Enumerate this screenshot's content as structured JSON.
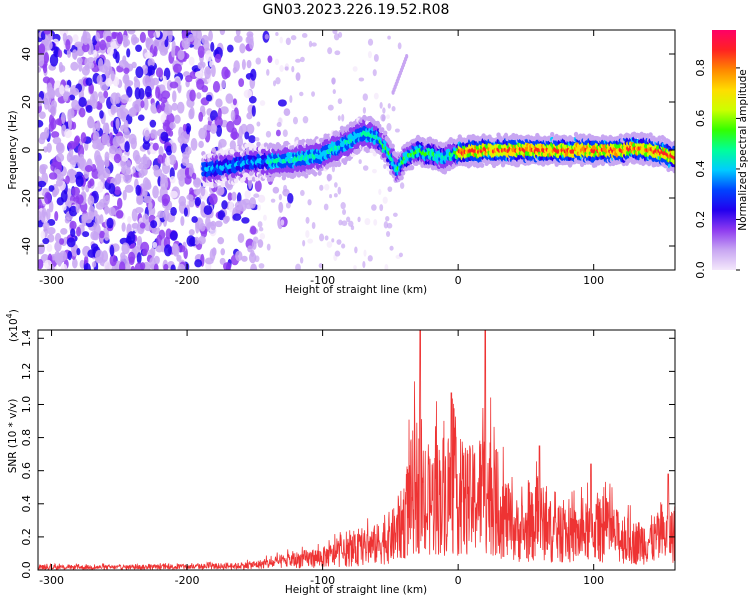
{
  "title": "GN03.2023.226.19.52.R08",
  "chart_data": [
    {
      "type": "heatmap",
      "xlabel": "Height of straight line (km)",
      "ylabel": "Frequency (Hz)",
      "xlim": [
        -310,
        160
      ],
      "ylim": [
        -50,
        50
      ],
      "xticks": [
        -300,
        -200,
        -100,
        0,
        100
      ],
      "yticks": [
        -40,
        -20,
        0,
        20,
        40
      ],
      "colorbar": {
        "label": "Normalized spectral amplitude",
        "range": [
          0.0,
          0.95
        ],
        "ticks": [
          "0.0",
          "0.2",
          "0.4",
          "0.6",
          "0.8"
        ],
        "tick_values": [
          0.0,
          0.2,
          0.4,
          0.6,
          0.8
        ],
        "colormap": [
          "#f4e8fb",
          "#c8a6f2",
          "#8e3bf0",
          "#2200ee",
          "#0044ff",
          "#00ccff",
          "#00ff99",
          "#33ff00",
          "#ccff00",
          "#ffdd00",
          "#ff8800",
          "#ff2222",
          "#ff0066"
        ]
      },
      "ridge": {
        "description_points_x": [
          -185,
          -150,
          -120,
          -100,
          -85,
          -70,
          -60,
          -52,
          -45,
          -40,
          -30,
          -20,
          -10,
          0,
          20,
          40,
          60,
          80,
          100,
          120,
          135,
          150,
          160
        ],
        "description_points_y": [
          -8,
          -5,
          -4,
          -2,
          2,
          7,
          6,
          0,
          -8,
          -4,
          0,
          -2,
          -3,
          -1,
          0,
          0,
          0,
          0,
          0,
          0,
          1,
          -1,
          -3
        ]
      },
      "grid": false
    },
    {
      "type": "line",
      "xlabel": "Height of straight line (km)",
      "ylabel": "SNR (10 * v/v)",
      "multiplier": "(x10",
      "multiplier_exp": "4",
      "multiplier_close": ")",
      "xlim": [
        -310,
        160
      ],
      "ylim": [
        0,
        1.45
      ],
      "xticks": [
        -300,
        -200,
        -100,
        0,
        100
      ],
      "yticks": [
        0.0,
        0.2,
        0.4,
        0.6,
        0.8,
        1.0,
        1.2,
        1.4
      ],
      "ytick_labels": [
        "0.0",
        "0.2",
        "0.4",
        "0.6",
        "0.8",
        "1.0",
        "1.2",
        "1.4"
      ],
      "series": [
        {
          "color": "#ee3333",
          "envelope_x": [
            -310,
            -250,
            -200,
            -160,
            -140,
            -120,
            -100,
            -80,
            -60,
            -45,
            -40,
            -35,
            -30,
            -25,
            -20,
            -10,
            0,
            10,
            20,
            30,
            40,
            50,
            60,
            70,
            80,
            90,
            100,
            110,
            120,
            130,
            140,
            150,
            160
          ],
          "envelope_y": [
            0.03,
            0.03,
            0.035,
            0.045,
            0.07,
            0.11,
            0.14,
            0.2,
            0.28,
            0.4,
            0.55,
            0.8,
            0.95,
            0.55,
            0.75,
            0.85,
            0.8,
            0.75,
            0.9,
            0.7,
            0.45,
            0.42,
            0.55,
            0.4,
            0.38,
            0.38,
            0.45,
            0.42,
            0.35,
            0.3,
            0.32,
            0.36,
            0.4
          ],
          "peaks_x": [
            -28,
            20,
            -5,
            60,
            98,
            155
          ],
          "peaks_y": [
            1.45,
            1.45,
            1.07,
            0.75,
            0.64,
            0.58
          ]
        }
      ],
      "grid": false
    }
  ]
}
